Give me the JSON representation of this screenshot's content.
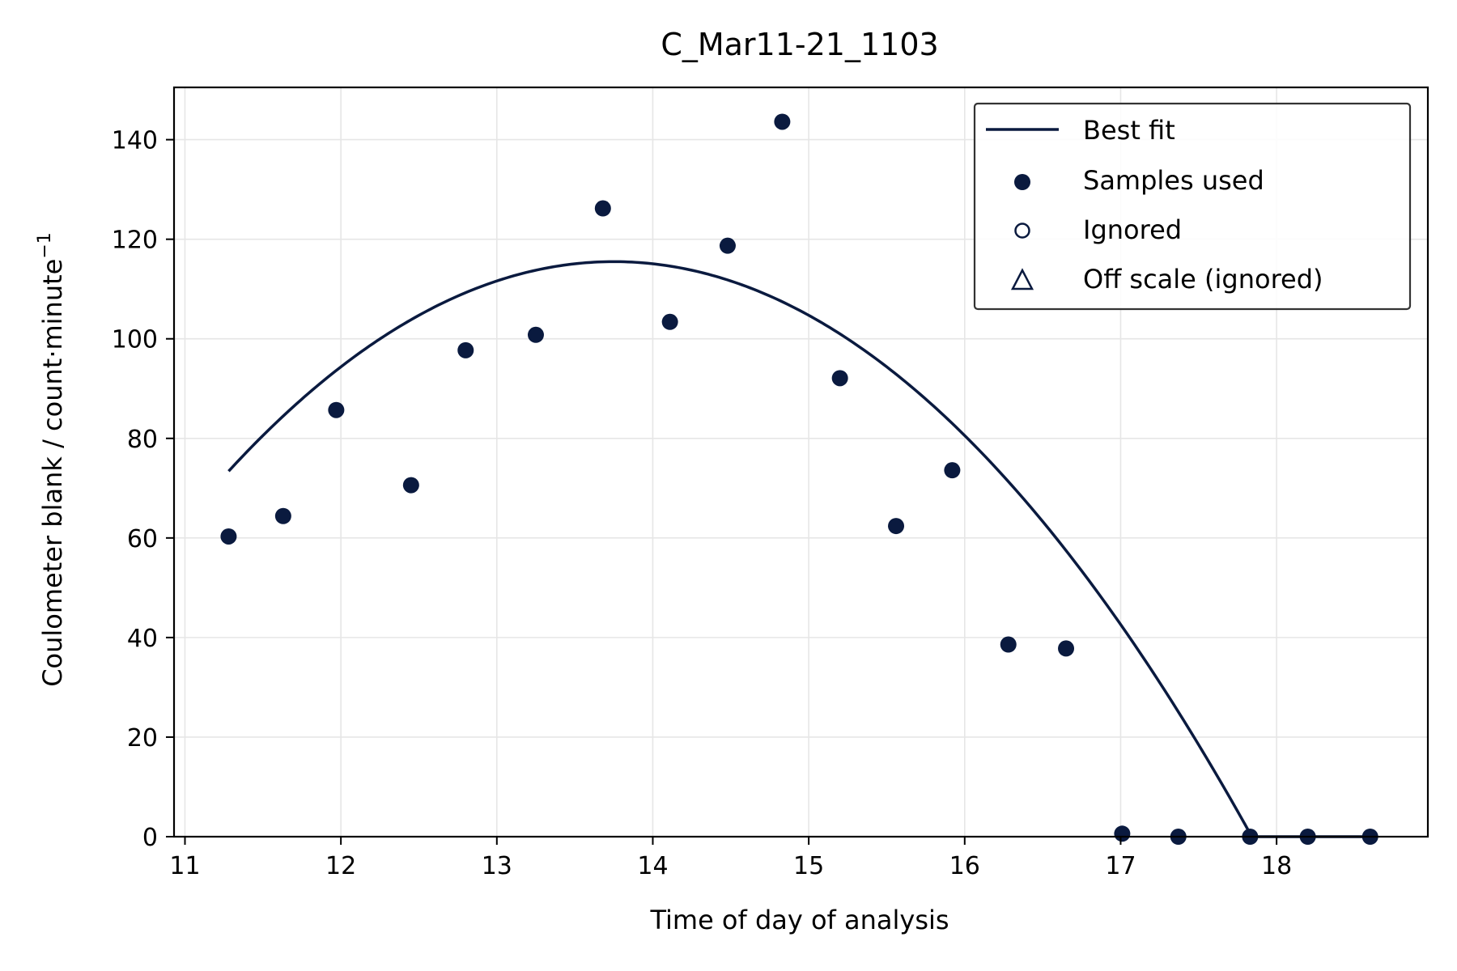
{
  "chart_data": {
    "type": "scatter",
    "title": "C_Mar11-21_1103",
    "xlabel": "Time of day of analysis",
    "ylabel": "Coulometer blank / count·minute",
    "ylabel_superscript": "−1",
    "xlim": [
      10.93,
      18.97
    ],
    "ylim": [
      0,
      150.5
    ],
    "xticks": [
      11,
      12,
      13,
      14,
      15,
      16,
      17,
      18
    ],
    "yticks": [
      0,
      20,
      40,
      60,
      80,
      100,
      120,
      140
    ],
    "grid": true,
    "legend_position": "top-right",
    "color": "#0a1a3f",
    "series": [
      {
        "name": "Samples used",
        "marker": "filled-circle",
        "points": [
          [
            11.28,
            60.3
          ],
          [
            11.63,
            64.4
          ],
          [
            11.97,
            85.7
          ],
          [
            12.45,
            70.6
          ],
          [
            12.8,
            97.7
          ],
          [
            13.25,
            100.8
          ],
          [
            13.68,
            126.2
          ],
          [
            14.11,
            103.4
          ],
          [
            14.48,
            118.7
          ],
          [
            14.83,
            143.6
          ],
          [
            15.2,
            92.1
          ],
          [
            15.56,
            62.4
          ],
          [
            15.92,
            73.6
          ],
          [
            16.28,
            38.6
          ],
          [
            16.65,
            37.8
          ],
          [
            17.01,
            0.6
          ],
          [
            17.37,
            0
          ],
          [
            17.83,
            0
          ],
          [
            18.2,
            0
          ],
          [
            18.6,
            0
          ]
        ]
      },
      {
        "name": "Best fit",
        "marker": "line",
        "curve": {
          "form": "quadratic",
          "vertex_x": 13.75,
          "vertex_y": 115.5,
          "a": -6.9,
          "x_start": 11.28,
          "x_end": 18.6,
          "floor": 0
        }
      },
      {
        "name": "Ignored",
        "marker": "open-circle",
        "points": []
      },
      {
        "name": "Off scale (ignored)",
        "marker": "open-triangle",
        "points": []
      }
    ],
    "legend_order": [
      "Best fit",
      "Samples used",
      "Ignored",
      "Off scale (ignored)"
    ]
  }
}
